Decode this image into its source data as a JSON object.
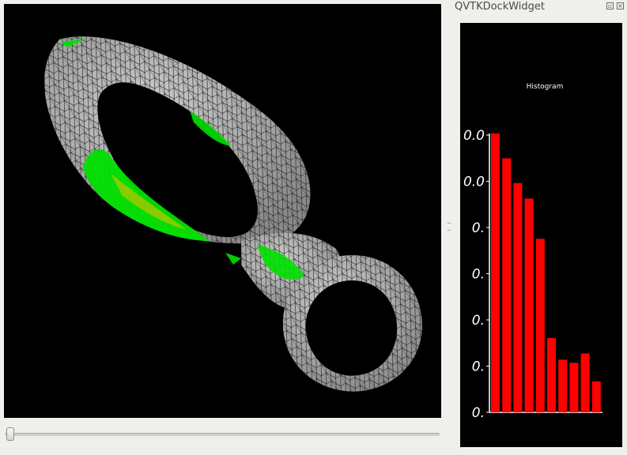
{
  "dock": {
    "title": "QVTKDockWidget",
    "float_icon": "restore-icon",
    "close_icon": "close-icon"
  },
  "viewport": {
    "background": "#000000",
    "mesh_color": "#b4b4b4",
    "highlight_color": "#00e000",
    "highlight_dark": "#9bc800"
  },
  "slider": {
    "value": 0
  },
  "histogram": {
    "title": "Histogram",
    "bar_color": "#ff0000",
    "background": "#000000"
  },
  "chart_data": {
    "type": "bar",
    "title": "Histogram",
    "values": [
      100,
      96,
      92,
      89.5,
      83,
      67,
      63.5,
      63,
      64.5,
      60
    ],
    "ylim": [
      55,
      100
    ],
    "y_tick_labels": [
      "0.",
      "0.",
      "0.",
      "0.",
      "0.",
      "0.0",
      "0.0"
    ],
    "xlabel": "",
    "ylabel": ""
  }
}
